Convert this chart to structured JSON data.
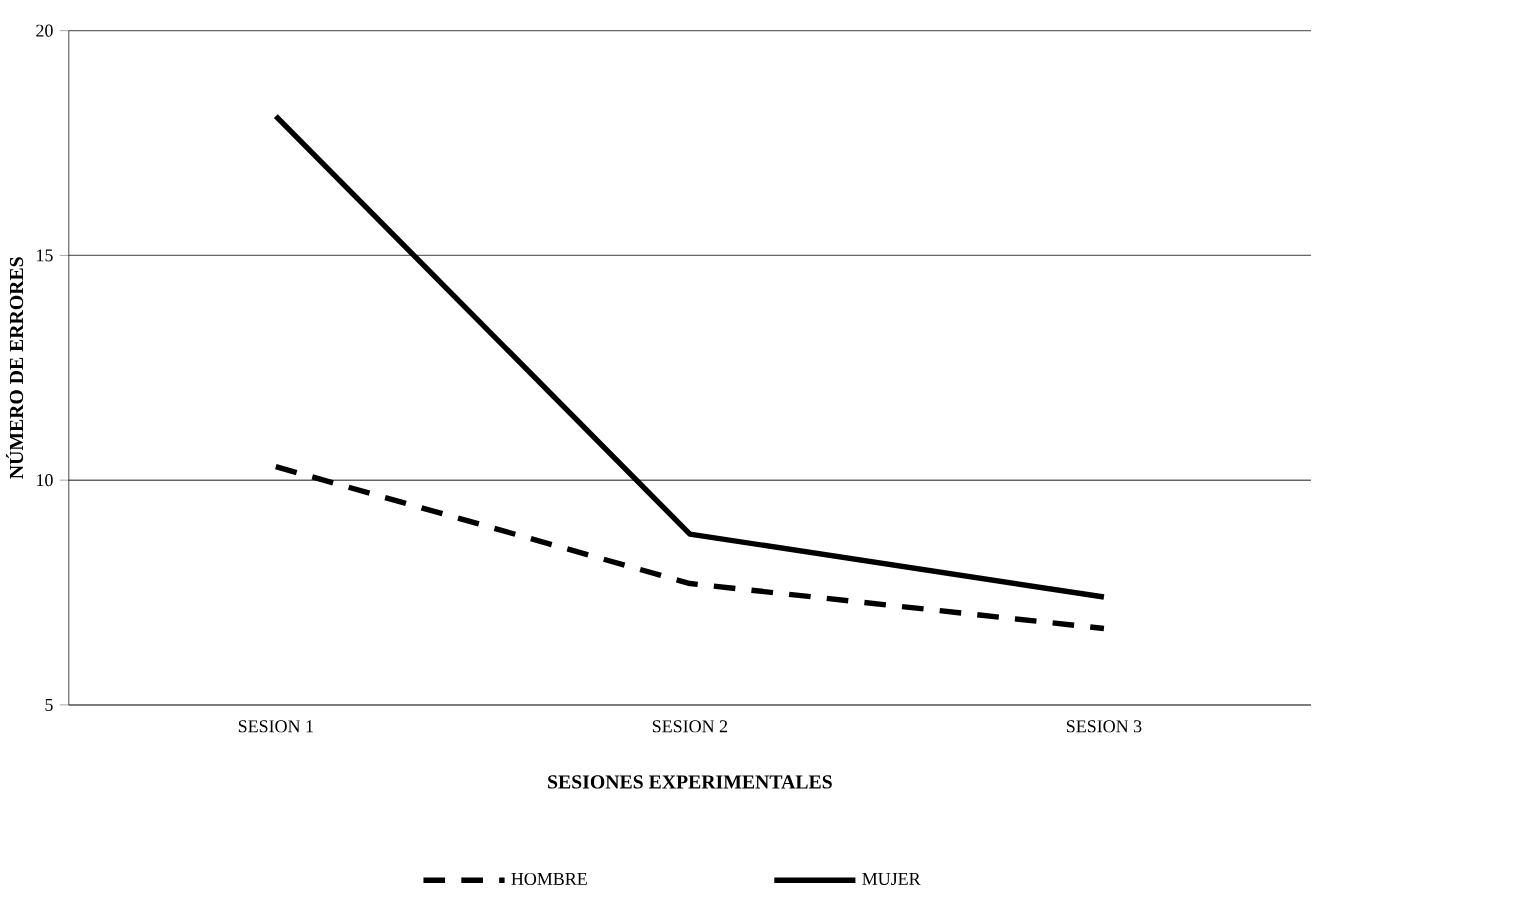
{
  "chart_data": {
    "type": "line",
    "xlabel": "SESIONES EXPERIMENTALES",
    "ylabel": "NÚMERO DE ERRORES",
    "categories": [
      "SESION 1",
      "SESION 2",
      "SESION 3"
    ],
    "series": [
      {
        "name": "HOMBRE",
        "color": "#000000",
        "line_style": "dashed",
        "values": [
          10.3,
          7.7,
          6.7
        ]
      },
      {
        "name": "MUJER",
        "color": "#000000",
        "line_style": "solid",
        "values": [
          18.1,
          8.8,
          7.4
        ]
      }
    ],
    "ylim": [
      5,
      20
    ],
    "yticks": [
      5,
      10,
      15,
      20
    ],
    "grid": "y",
    "legend": "bottom",
    "marker": "none"
  }
}
